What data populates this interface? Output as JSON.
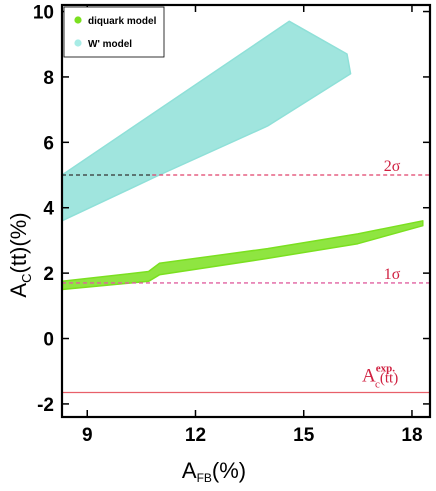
{
  "chart_data": {
    "type": "scatter",
    "xlabel": "A",
    "xlabel_sub": "FB",
    "xlabel_unit": "(%)",
    "ylabel": "A",
    "ylabel_sub": "C",
    "ylabel_tail": "(tt)(%)",
    "xlim": [
      8.3,
      18.5
    ],
    "ylim": [
      -2.4,
      10.2
    ],
    "xticks": [
      {
        "value": 9,
        "label": "9"
      },
      {
        "value": 12,
        "label": "12"
      },
      {
        "value": 15,
        "label": "15"
      },
      {
        "value": 18,
        "label": "18"
      }
    ],
    "yticks": [
      {
        "value": -2,
        "label": "-2"
      },
      {
        "value": 0,
        "label": "0"
      },
      {
        "value": 2,
        "label": "2"
      },
      {
        "value": 4,
        "label": "4"
      },
      {
        "value": 6,
        "label": "6"
      },
      {
        "value": 8,
        "label": "8"
      },
      {
        "value": 10,
        "label": "10"
      }
    ],
    "legend": {
      "placement": "top-left",
      "entries": [
        {
          "label": "diquark model",
          "color": "#7be020"
        },
        {
          "label": "W'   model",
          "color": "#a8ece6"
        }
      ]
    },
    "series": [
      {
        "name": "W'   model",
        "color": "#8fe0d8",
        "region_upper": [
          [
            8.3,
            5.0
          ],
          [
            14.6,
            9.7
          ],
          [
            16.2,
            8.7
          ],
          [
            16.3,
            8.1
          ]
        ],
        "region_lower": [
          [
            8.3,
            3.6
          ],
          [
            11.0,
            5.0
          ],
          [
            14.0,
            6.5
          ],
          [
            16.3,
            8.1
          ]
        ]
      },
      {
        "name": "diquark model",
        "color": "#7be020",
        "region_upper": [
          [
            8.3,
            1.75
          ],
          [
            10.7,
            2.05
          ],
          [
            11.0,
            2.3
          ],
          [
            14.0,
            2.75
          ],
          [
            16.5,
            3.2
          ],
          [
            18.3,
            3.6
          ]
        ],
        "region_lower": [
          [
            8.3,
            1.5
          ],
          [
            10.7,
            1.75
          ],
          [
            11.0,
            1.95
          ],
          [
            14.0,
            2.45
          ],
          [
            16.5,
            2.9
          ],
          [
            18.3,
            3.45
          ]
        ]
      }
    ],
    "reference_lines": [
      {
        "y": 5.0,
        "label": "2σ",
        "style": "dashed",
        "color": "#e0406a",
        "left_segment_color": "#333333",
        "left_segment_to_x": 10.8
      },
      {
        "y": 1.7,
        "label": "1σ",
        "style": "dashed",
        "color": "#e060a0"
      },
      {
        "y": -1.65,
        "label_main": "A",
        "label_sub": "c",
        "label_sup": "exp.",
        "label_tail": "(tt)",
        "style": "solid",
        "color": "#e8606a"
      }
    ]
  }
}
